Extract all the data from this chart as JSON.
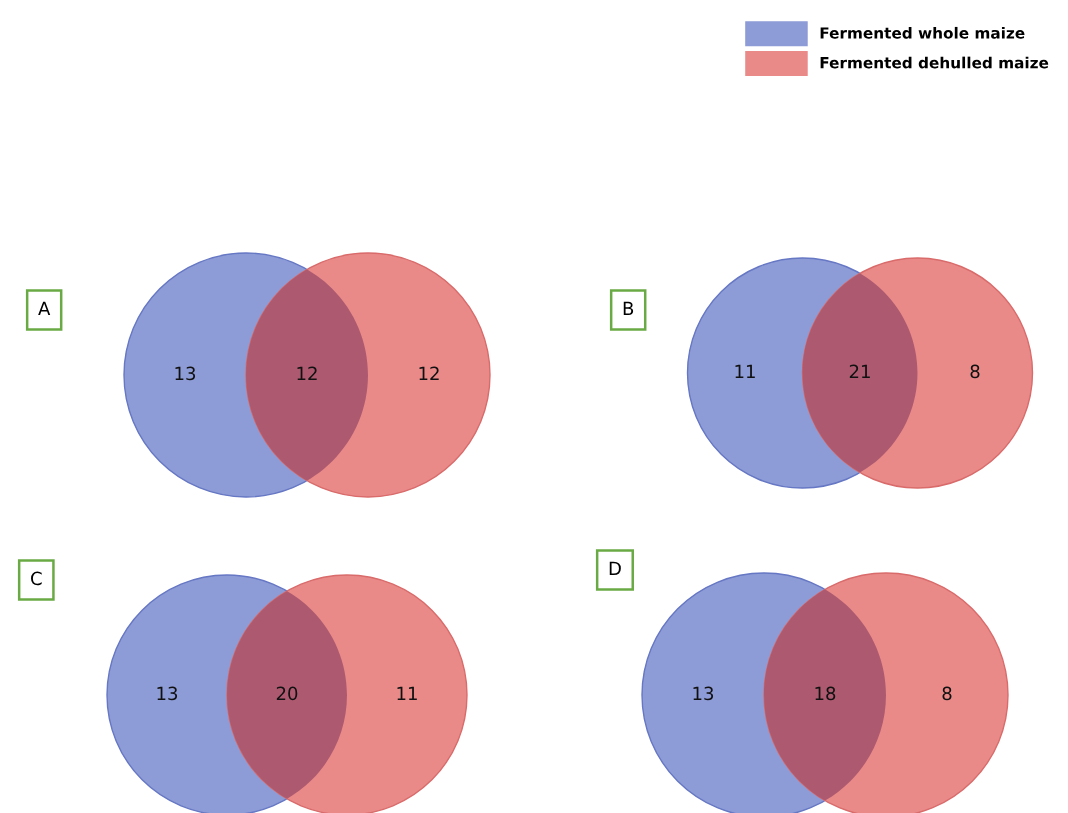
{
  "chart_data": [
    {
      "type": "other",
      "categories": [
        "Fermented whole maize",
        "Fermented dehulled maize"
      ],
      "colors": [
        "#8d9bd6",
        "#e98a89"
      ]
    },
    {
      "type": "other",
      "title": "A",
      "categories": [
        null,
        null,
        null
      ],
      "values": [
        13,
        12,
        12
      ],
      "colors": [
        "#8d9bd6",
        "#ad5a70",
        "#e98a89"
      ],
      "data_labels": true
    },
    {
      "type": "other",
      "title": "B",
      "categories": [
        null,
        null,
        null
      ],
      "values": [
        11,
        21,
        8
      ],
      "colors": [
        "#8d9bd6",
        "#ad5a70",
        "#e98a89"
      ],
      "data_labels": true
    },
    {
      "type": "other",
      "title": "C",
      "categories": [
        null,
        null,
        null
      ],
      "values": [
        13,
        20,
        11
      ],
      "colors": [
        "#8d9bd6",
        "#ad5a70",
        "#e98a89"
      ],
      "data_labels": true
    },
    {
      "type": "other",
      "title": "D",
      "categories": [
        null,
        null,
        null
      ],
      "values": [
        13,
        18,
        8
      ],
      "colors": [
        "#8d9bd6",
        "#ad5a70",
        "#e98a89"
      ],
      "data_labels": true
    }
  ]
}
